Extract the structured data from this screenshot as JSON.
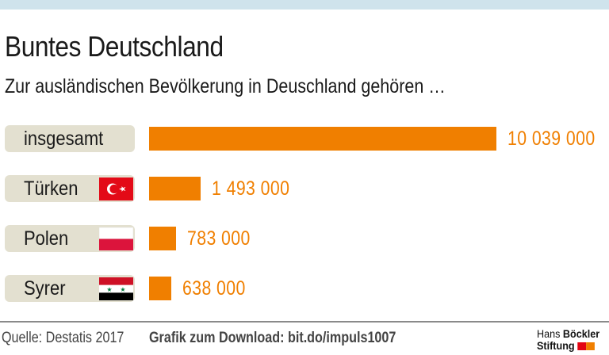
{
  "title": "Buntes Deutschland",
  "subtitle": "Zur ausländischen Bevölkerung in Deuschland gehören …",
  "chart_data": {
    "type": "bar",
    "orientation": "horizontal",
    "categories": [
      "insgesamt",
      "Türken",
      "Polen",
      "Syrer"
    ],
    "values": [
      10039000,
      1493000,
      783000,
      638000
    ],
    "value_labels": [
      "10 039 000",
      "1 493 000",
      "783 000",
      "638 000"
    ],
    "flags": [
      "",
      "turkey-flag",
      "poland-flag",
      "syria-flag"
    ],
    "bar_color": "#f07f00",
    "label_bg": "#e3e0d0",
    "xlim": [
      0,
      10039000
    ],
    "grid": false
  },
  "footer": {
    "source": "Quelle: Destatis 2017",
    "download": "Grafik zum Download: bit.do/impuls1007",
    "logo_line1_a": "Hans",
    "logo_line1_b": "Böckler",
    "logo_line2": "Stiftung",
    "logo_colors": [
      "#e30613",
      "#f07f00"
    ]
  }
}
